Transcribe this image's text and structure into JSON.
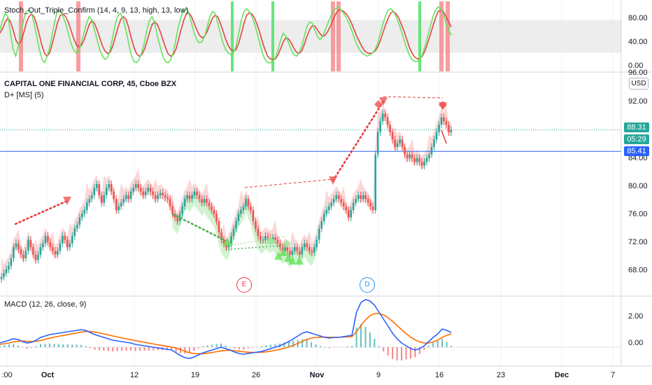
{
  "stoch_pane": {
    "title": "Stoch_Out_Triple_Confirm (14, 4, 9, 13, high, 13, low)",
    "y_ticks": [
      "80.00",
      "40.00",
      "0.00"
    ]
  },
  "price_pane": {
    "title": "CAPITAL ONE FINANCIAL CORP, 45, Cboe BZX",
    "subtitle": "D+ [MS] (5)",
    "currency": "USD",
    "y_ticks": [
      "96.00",
      "92.00",
      "84.00",
      "80.00",
      "76.00",
      "72.00",
      "68.00"
    ],
    "last_price": "88.31",
    "countdown": "05:29",
    "hline_price": "85.41",
    "markers": [
      {
        "label": "E",
        "color": "#f23645"
      },
      {
        "label": "D",
        "color": "#2196f3"
      }
    ]
  },
  "macd_pane": {
    "title": "MACD (12, 26, close, 9)",
    "y_ticks": [
      "2.00",
      "0.00"
    ]
  },
  "x_axis": {
    "ticks": [
      {
        "label": ":00",
        "bold": false
      },
      {
        "label": "Oct",
        "bold": true
      },
      {
        "label": "12",
        "bold": false
      },
      {
        "label": "19",
        "bold": false
      },
      {
        "label": "26",
        "bold": false
      },
      {
        "label": "Nov",
        "bold": true
      },
      {
        "label": "9",
        "bold": false
      },
      {
        "label": "16",
        "bold": false
      },
      {
        "label": "23",
        "bold": false
      },
      {
        "label": "Dec",
        "bold": true
      },
      {
        "label": "7",
        "bold": false
      }
    ]
  },
  "colors": {
    "up": "#26a69a",
    "down": "#ef5350",
    "macd": "#2962ff",
    "signal": "#ff6d00",
    "stoch_k": "#66e35a",
    "stoch_d": "#e04545",
    "hline": "#2962ff",
    "last": "#26a69a"
  },
  "chart_data": [
    {
      "type": "line",
      "name": "Stoch oscillator",
      "ylim": [
        0,
        100
      ],
      "levels": [
        25,
        75
      ],
      "k": [
        60,
        75,
        85,
        80,
        55,
        30,
        20,
        35,
        55,
        75,
        88,
        90,
        85,
        70,
        50,
        30,
        15,
        10,
        20,
        35,
        55,
        75,
        90,
        88,
        80,
        70,
        55,
        40,
        30,
        25,
        28,
        40,
        55,
        70,
        80,
        75,
        60,
        45,
        30,
        20,
        15,
        18,
        30,
        50,
        70,
        82,
        85,
        75,
        60,
        40,
        22,
        12,
        10,
        15,
        25,
        40,
        60,
        75,
        80,
        70,
        50,
        35,
        20,
        12,
        10,
        14,
        25,
        45,
        65,
        80,
        90,
        92,
        85,
        70,
        55,
        45,
        40,
        42,
        50,
        65,
        80,
        88,
        85,
        70,
        55,
        40,
        30,
        25,
        22,
        25,
        35,
        55,
        75,
        88,
        92,
        88,
        80,
        70,
        55,
        40,
        25,
        15,
        10,
        10,
        12,
        18,
        30,
        45,
        55,
        50,
        40,
        30,
        22,
        20,
        25,
        35,
        50,
        65,
        72,
        70,
        60,
        50,
        45,
        50,
        60,
        70,
        80,
        88,
        92,
        95,
        90,
        85,
        78,
        70,
        60,
        48,
        38,
        30,
        25,
        22,
        20,
        22,
        25,
        30,
        40,
        55,
        70,
        82,
        90,
        92,
        88,
        80,
        70,
        58,
        45,
        32,
        22,
        15,
        12,
        12,
        15,
        22,
        35,
        50,
        65,
        80,
        90,
        95,
        92,
        85,
        70,
        60,
        52
      ],
      "d": [
        55,
        62,
        72,
        78,
        72,
        60,
        45,
        38,
        42,
        55,
        70,
        80,
        84,
        80,
        68,
        52,
        36,
        24,
        20,
        26,
        40,
        56,
        72,
        82,
        84,
        80,
        72,
        60,
        48,
        38,
        34,
        36,
        44,
        56,
        68,
        74,
        70,
        60,
        48,
        36,
        28,
        24,
        26,
        36,
        50,
        64,
        76,
        80,
        76,
        64,
        48,
        34,
        24,
        20,
        22,
        30,
        42,
        56,
        68,
        72,
        68,
        58,
        46,
        34,
        24,
        20,
        22,
        30,
        44,
        60,
        74,
        84,
        86,
        80,
        70,
        60,
        52,
        48,
        50,
        58,
        68,
        78,
        82,
        80,
        70,
        58,
        46,
        36,
        30,
        28,
        30,
        40,
        54,
        70,
        82,
        86,
        84,
        78,
        68,
        56,
        42,
        30,
        20,
        16,
        15,
        16,
        22,
        32,
        42,
        48,
        46,
        40,
        32,
        26,
        24,
        28,
        38,
        50,
        60,
        66,
        66,
        60,
        54,
        50,
        52,
        58,
        66,
        76,
        84,
        90,
        90,
        88,
        84,
        78,
        70,
        60,
        50,
        42,
        34,
        28,
        25,
        24,
        25,
        28,
        34,
        44,
        56,
        68,
        78,
        86,
        88,
        84,
        78,
        68,
        58,
        46,
        34,
        25,
        19,
        16,
        16,
        20,
        28,
        40,
        52,
        66,
        78,
        88,
        90,
        88,
        80,
        72,
        64
      ]
    },
    {
      "type": "candlestick",
      "name": "COF price",
      "ylim": [
        66,
        96
      ],
      "close": [
        68.5,
        69.0,
        69.5,
        70.0,
        71.0,
        72.5,
        73.0,
        72.2,
        71.5,
        71.0,
        72.0,
        73.5,
        72.5,
        71.5,
        70.8,
        71.5,
        72.5,
        73.0,
        74.0,
        73.2,
        72.5,
        72.0,
        71.5,
        72.0,
        73.0,
        74.0,
        73.5,
        72.5,
        73.0,
        74.0,
        75.0,
        75.5,
        76.5,
        77.0,
        77.5,
        78.5,
        79.0,
        79.5,
        80.5,
        81.0,
        79.5,
        78.5,
        79.5,
        80.5,
        81.0,
        80.0,
        79.0,
        77.5,
        78.0,
        78.5,
        79.0,
        79.5,
        79.0,
        80.0,
        80.5,
        81.0,
        80.5,
        80.0,
        79.5,
        80.0,
        80.5,
        80.0,
        79.5,
        79.0,
        79.5,
        79.8,
        79.5,
        79.2,
        79.0,
        78.0,
        77.0,
        76.5,
        76.0,
        77.0,
        78.0,
        79.0,
        79.5,
        79.0,
        79.5,
        80.0,
        79.5,
        79.0,
        78.5,
        79.0,
        78.5,
        78.0,
        77.5,
        77.0,
        76.0,
        74.5,
        73.5,
        73.0,
        72.5,
        73.0,
        74.0,
        75.0,
        76.0,
        77.0,
        77.5,
        78.0,
        79.0,
        78.0,
        77.5,
        76.0,
        75.0,
        74.0,
        73.5,
        73.5,
        74.0,
        73.8,
        73.5,
        73.8,
        73.5,
        73.0,
        72.5,
        72.0,
        72.5,
        72.0,
        71.5,
        72.0,
        72.5,
        72.0,
        71.5,
        72.5,
        73.0,
        72.5,
        72.0,
        71.8,
        72.5,
        73.5,
        75.0,
        76.0,
        77.0,
        77.5,
        78.0,
        78.5,
        79.0,
        79.5,
        79.0,
        78.5,
        78.0,
        77.5,
        76.5,
        77.5,
        78.5,
        79.0,
        79.5,
        79.0,
        79.5,
        79.0,
        78.5,
        78.0,
        77.5,
        85.0,
        88.0,
        89.5,
        90.5,
        90.0,
        89.0,
        88.0,
        87.0,
        86.0,
        86.5,
        87.0,
        86.0,
        85.0,
        84.5,
        85.0,
        84.5,
        84.0,
        84.5,
        84.0,
        83.5,
        84.0,
        84.5,
        85.0,
        86.0,
        87.0,
        88.0,
        89.0,
        90.0,
        89.5,
        89.0,
        88.0,
        88.3
      ],
      "hline": 85.41,
      "last": 88.31
    },
    {
      "type": "line",
      "name": "MACD",
      "ylim": [
        -1.3,
        3.6
      ],
      "macd": [
        0.3,
        0.4,
        0.5,
        0.6,
        0.55,
        0.4,
        0.3,
        0.35,
        0.5,
        0.7,
        0.8,
        0.9,
        0.95,
        1.0,
        1.05,
        1.1,
        1.15,
        1.2,
        1.25,
        1.2,
        1.05,
        0.9,
        0.8,
        0.7,
        0.6,
        0.5,
        0.45,
        0.4,
        0.35,
        0.3,
        0.2,
        0.15,
        0.1,
        0.05,
        0.0,
        -0.05,
        -0.1,
        -0.15,
        -0.2,
        -0.4,
        -0.6,
        -0.75,
        -0.8,
        -0.7,
        -0.55,
        -0.4,
        -0.3,
        -0.2,
        -0.1,
        0.0,
        -0.1,
        -0.2,
        -0.35,
        -0.45,
        -0.5,
        -0.45,
        -0.4,
        -0.35,
        -0.3,
        -0.2,
        -0.1,
        0.0,
        0.1,
        0.25,
        0.4,
        0.6,
        0.8,
        1.0,
        1.1,
        1.0,
        0.9,
        0.8,
        0.7,
        0.65,
        0.7,
        0.7,
        0.75,
        0.8,
        0.85,
        2.5,
        3.2,
        3.4,
        3.3,
        3.0,
        2.5,
        2.0,
        1.5,
        1.0,
        0.6,
        0.3,
        0.1,
        -0.1,
        -0.2,
        -0.1,
        0.1,
        0.4,
        0.7,
        0.95,
        1.3,
        1.2,
        1.05
      ],
      "signal": [
        0.2,
        0.25,
        0.3,
        0.38,
        0.42,
        0.44,
        0.42,
        0.4,
        0.42,
        0.48,
        0.56,
        0.64,
        0.72,
        0.78,
        0.84,
        0.9,
        0.96,
        1.02,
        1.08,
        1.12,
        1.12,
        1.08,
        1.02,
        0.95,
        0.88,
        0.8,
        0.73,
        0.66,
        0.6,
        0.54,
        0.47,
        0.41,
        0.35,
        0.29,
        0.23,
        0.17,
        0.12,
        0.07,
        0.02,
        -0.06,
        -0.17,
        -0.29,
        -0.39,
        -0.45,
        -0.47,
        -0.46,
        -0.43,
        -0.38,
        -0.32,
        -0.26,
        -0.23,
        -0.22,
        -0.25,
        -0.29,
        -0.33,
        -0.36,
        -0.37,
        -0.37,
        -0.36,
        -0.33,
        -0.28,
        -0.22,
        -0.16,
        -0.08,
        0.02,
        0.14,
        0.27,
        0.42,
        0.56,
        0.65,
        0.7,
        0.72,
        0.72,
        0.71,
        0.71,
        0.71,
        0.72,
        0.74,
        0.76,
        1.1,
        1.55,
        1.95,
        2.25,
        2.4,
        2.42,
        2.3,
        2.1,
        1.85,
        1.55,
        1.25,
        0.97,
        0.72,
        0.52,
        0.38,
        0.3,
        0.3,
        0.38,
        0.5,
        0.7,
        0.85,
        0.95
      ]
    }
  ]
}
